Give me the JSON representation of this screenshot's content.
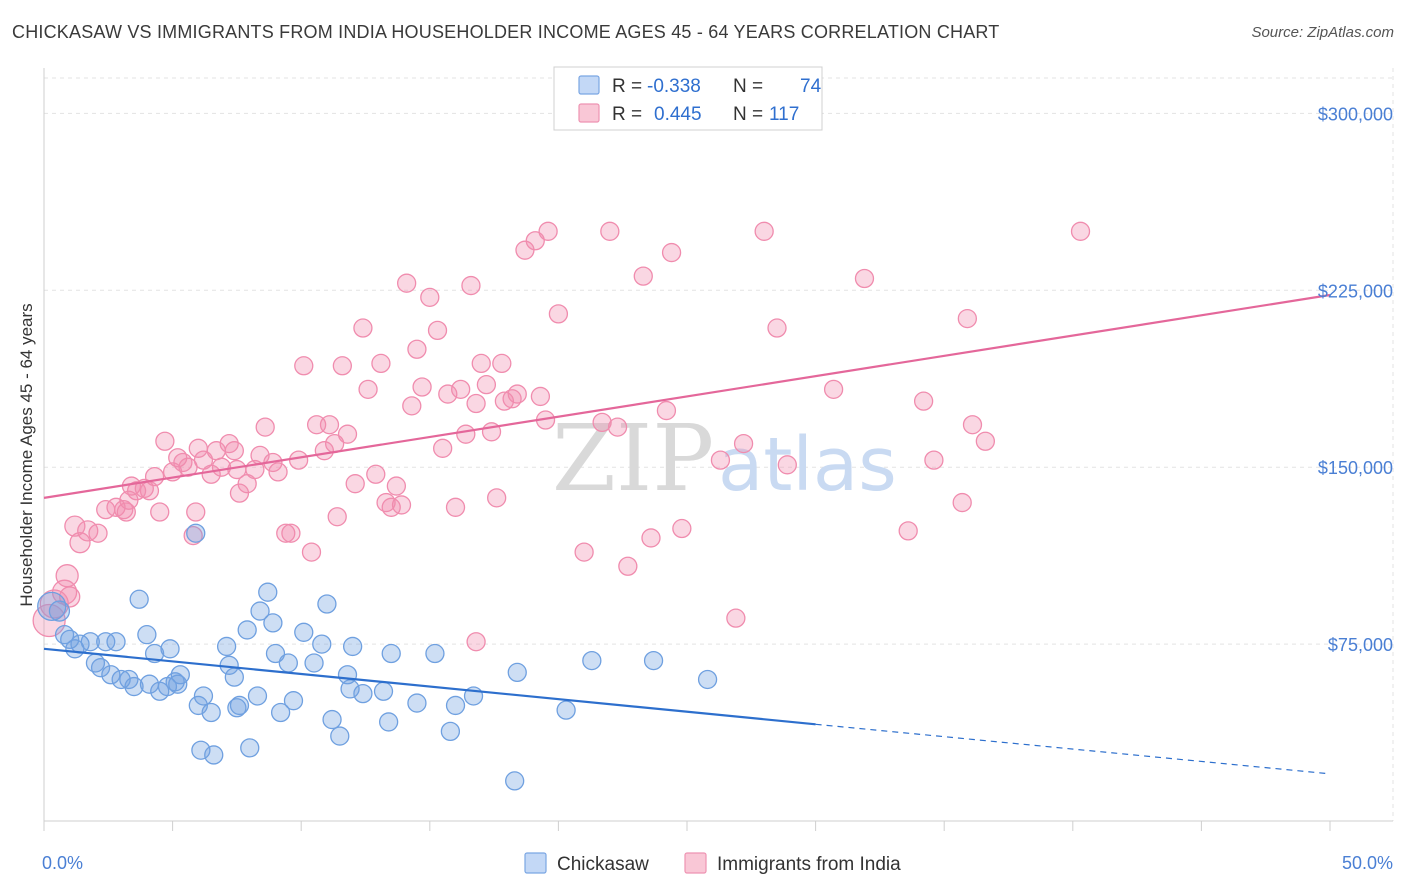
{
  "title": "CHICKASAW VS IMMIGRANTS FROM INDIA HOUSEHOLDER INCOME AGES 45 - 64 YEARS CORRELATION CHART",
  "source": "Source: ZipAtlas.com",
  "watermark": {
    "zip": "ZIP",
    "atlas": "atlas"
  },
  "legend_top": {
    "rows": [
      {
        "r_label": "R =",
        "r_value": "-0.338",
        "n_label": "N =",
        "n_value": "74"
      },
      {
        "r_label": "R =",
        "r_value": "0.445",
        "n_label": "N =",
        "n_value": "117"
      }
    ]
  },
  "chart_data": {
    "type": "scatter",
    "title": "CHICKASAW VS IMMIGRANTS FROM INDIA HOUSEHOLDER INCOME AGES 45 - 64 YEARS CORRELATION CHART",
    "xlabel": "",
    "ylabel": "Householder Income Ages 45 - 64 years",
    "xlim": [
      0,
      50
    ],
    "ylim": [
      0,
      315000
    ],
    "x_tick_labels": [
      "0.0%",
      "50.0%"
    ],
    "y_ticks": [
      75000,
      150000,
      225000,
      300000
    ],
    "y_tick_labels": [
      "$75,000",
      "$150,000",
      "$225,000",
      "$300,000"
    ],
    "colors": {
      "chickasaw": "#6fa0e0",
      "india": "#f08cae",
      "chickasaw_line": "#2d6fcd",
      "india_line": "#e4679a"
    },
    "series": [
      {
        "name": "Chickasaw",
        "r": -0.338,
        "n": 74,
        "trend": {
          "x0": 0,
          "y0": 73000,
          "x1": 30,
          "y1": 41000,
          "x_dash_end": 50,
          "y_dash_end": 20000
        },
        "points": [
          [
            0.3,
            91000,
            14
          ],
          [
            0.6,
            89000,
            10
          ],
          [
            0.8,
            79000,
            9
          ],
          [
            1.0,
            77000,
            9
          ],
          [
            1.2,
            73000,
            9
          ],
          [
            1.4,
            75000,
            9
          ],
          [
            1.8,
            76000,
            9
          ],
          [
            2.0,
            67000,
            9
          ],
          [
            2.2,
            65000,
            9
          ],
          [
            2.4,
            76000,
            9
          ],
          [
            2.8,
            76000,
            9
          ],
          [
            2.6,
            62000,
            9
          ],
          [
            3.0,
            60000,
            9
          ],
          [
            3.3,
            60000,
            9
          ],
          [
            3.5,
            57000,
            9
          ],
          [
            3.7,
            94000,
            9
          ],
          [
            4.0,
            79000,
            9
          ],
          [
            4.1,
            58000,
            9
          ],
          [
            4.3,
            71000,
            9
          ],
          [
            4.5,
            55000,
            9
          ],
          [
            4.8,
            57000,
            9
          ],
          [
            4.9,
            73000,
            9
          ],
          [
            5.1,
            59000,
            9
          ],
          [
            5.3,
            62000,
            9
          ],
          [
            5.2,
            58000,
            9
          ],
          [
            5.9,
            122000,
            9
          ],
          [
            6.0,
            49000,
            9
          ],
          [
            6.2,
            53000,
            9
          ],
          [
            6.5,
            46000,
            9
          ],
          [
            6.1,
            30000,
            9
          ],
          [
            6.6,
            28000,
            9
          ],
          [
            7.1,
            74000,
            9
          ],
          [
            7.2,
            66000,
            9
          ],
          [
            7.4,
            61000,
            9
          ],
          [
            7.5,
            48000,
            9
          ],
          [
            7.6,
            49000,
            9
          ],
          [
            7.9,
            81000,
            9
          ],
          [
            8.0,
            31000,
            9
          ],
          [
            8.3,
            53000,
            9
          ],
          [
            8.4,
            89000,
            9
          ],
          [
            8.7,
            97000,
            9
          ],
          [
            8.9,
            84000,
            9
          ],
          [
            9.0,
            71000,
            9
          ],
          [
            9.2,
            46000,
            9
          ],
          [
            9.5,
            67000,
            9
          ],
          [
            9.7,
            51000,
            9
          ],
          [
            10.1,
            80000,
            9
          ],
          [
            10.5,
            67000,
            9
          ],
          [
            10.8,
            75000,
            9
          ],
          [
            11.0,
            92000,
            9
          ],
          [
            11.2,
            43000,
            9
          ],
          [
            11.5,
            36000,
            9
          ],
          [
            11.8,
            62000,
            9
          ],
          [
            11.9,
            56000,
            9
          ],
          [
            12.0,
            74000,
            9
          ],
          [
            12.4,
            54000,
            9
          ],
          [
            13.2,
            55000,
            9
          ],
          [
            13.4,
            42000,
            9
          ],
          [
            13.5,
            71000,
            9
          ],
          [
            14.5,
            50000,
            9
          ],
          [
            15.2,
            71000,
            9
          ],
          [
            15.8,
            38000,
            9
          ],
          [
            16.0,
            49000,
            9
          ],
          [
            16.7,
            53000,
            9
          ],
          [
            18.3,
            17000,
            9
          ],
          [
            18.4,
            63000,
            9
          ],
          [
            20.3,
            47000,
            9
          ],
          [
            21.3,
            68000,
            9
          ],
          [
            23.7,
            68000,
            9
          ],
          [
            25.8,
            60000,
            9
          ]
        ]
      },
      {
        "name": "Immigrants from India",
        "r": 0.445,
        "n": 117,
        "trend": {
          "x0": 0,
          "y0": 137000,
          "x1": 50,
          "y1": 223000
        },
        "points": [
          [
            0.2,
            85000,
            16
          ],
          [
            0.4,
            92000,
            14
          ],
          [
            0.8,
            97000,
            12
          ],
          [
            0.9,
            104000,
            11
          ],
          [
            1.0,
            95000,
            10
          ],
          [
            1.2,
            125000,
            10
          ],
          [
            1.4,
            118000,
            10
          ],
          [
            1.7,
            123000,
            10
          ],
          [
            2.1,
            122000,
            9
          ],
          [
            2.4,
            132000,
            9
          ],
          [
            2.8,
            133000,
            9
          ],
          [
            3.1,
            132000,
            9
          ],
          [
            3.2,
            131000,
            9
          ],
          [
            3.3,
            136000,
            9
          ],
          [
            3.4,
            142000,
            9
          ],
          [
            3.6,
            140000,
            9
          ],
          [
            3.9,
            141000,
            9
          ],
          [
            4.1,
            140000,
            9
          ],
          [
            4.3,
            146000,
            9
          ],
          [
            4.5,
            131000,
            9
          ],
          [
            4.7,
            161000,
            9
          ],
          [
            5.0,
            148000,
            9
          ],
          [
            5.2,
            154000,
            9
          ],
          [
            5.4,
            152000,
            9
          ],
          [
            5.6,
            150000,
            9
          ],
          [
            5.9,
            131000,
            9
          ],
          [
            6.0,
            158000,
            9
          ],
          [
            6.2,
            153000,
            9
          ],
          [
            6.5,
            147000,
            9
          ],
          [
            6.7,
            157000,
            9
          ],
          [
            6.9,
            150000,
            9
          ],
          [
            7.2,
            160000,
            9
          ],
          [
            7.4,
            157000,
            9
          ],
          [
            7.5,
            149000,
            9
          ],
          [
            7.6,
            139000,
            9
          ],
          [
            7.9,
            143000,
            9
          ],
          [
            8.2,
            149000,
            9
          ],
          [
            8.4,
            155000,
            9
          ],
          [
            8.6,
            167000,
            9
          ],
          [
            8.9,
            152000,
            9
          ],
          [
            9.1,
            148000,
            9
          ],
          [
            9.4,
            122000,
            9
          ],
          [
            9.6,
            122000,
            9
          ],
          [
            9.9,
            153000,
            9
          ],
          [
            10.1,
            193000,
            9
          ],
          [
            10.4,
            114000,
            9
          ],
          [
            10.6,
            168000,
            9
          ],
          [
            10.9,
            157000,
            9
          ],
          [
            11.1,
            168000,
            9
          ],
          [
            11.3,
            160000,
            9
          ],
          [
            11.4,
            129000,
            9
          ],
          [
            11.6,
            193000,
            9
          ],
          [
            11.8,
            164000,
            9
          ],
          [
            12.1,
            143000,
            9
          ],
          [
            12.4,
            209000,
            9
          ],
          [
            12.6,
            183000,
            9
          ],
          [
            12.9,
            147000,
            9
          ],
          [
            13.1,
            194000,
            9
          ],
          [
            13.3,
            135000,
            9
          ],
          [
            13.5,
            133000,
            9
          ],
          [
            13.7,
            142000,
            9
          ],
          [
            13.9,
            134000,
            9
          ],
          [
            14.1,
            228000,
            9
          ],
          [
            14.3,
            176000,
            9
          ],
          [
            14.5,
            200000,
            9
          ],
          [
            14.7,
            184000,
            9
          ],
          [
            15.0,
            222000,
            9
          ],
          [
            15.3,
            208000,
            9
          ],
          [
            15.5,
            158000,
            9
          ],
          [
            15.7,
            181000,
            9
          ],
          [
            16.0,
            133000,
            9
          ],
          [
            16.2,
            183000,
            9
          ],
          [
            16.4,
            164000,
            9
          ],
          [
            16.6,
            227000,
            9
          ],
          [
            16.8,
            177000,
            9
          ],
          [
            17.0,
            194000,
            9
          ],
          [
            17.2,
            185000,
            9
          ],
          [
            17.4,
            165000,
            9
          ],
          [
            17.6,
            137000,
            9
          ],
          [
            17.8,
            194000,
            9
          ],
          [
            17.9,
            178000,
            9
          ],
          [
            18.2,
            179000,
            9
          ],
          [
            18.4,
            181000,
            9
          ],
          [
            18.7,
            242000,
            9
          ],
          [
            19.1,
            246000,
            9
          ],
          [
            19.3,
            180000,
            9
          ],
          [
            19.5,
            170000,
            9
          ],
          [
            19.6,
            250000,
            9
          ],
          [
            20.0,
            215000,
            9
          ],
          [
            21.0,
            114000,
            9
          ],
          [
            21.7,
            169000,
            9
          ],
          [
            22.0,
            250000,
            9
          ],
          [
            22.3,
            167000,
            9
          ],
          [
            22.7,
            108000,
            9
          ],
          [
            23.3,
            231000,
            9
          ],
          [
            23.6,
            120000,
            9
          ],
          [
            24.2,
            174000,
            9
          ],
          [
            24.4,
            241000,
            9
          ],
          [
            24.8,
            124000,
            9
          ],
          [
            26.3,
            153000,
            9
          ],
          [
            26.9,
            86000,
            9
          ],
          [
            27.2,
            160000,
            9
          ],
          [
            28.0,
            250000,
            9
          ],
          [
            28.5,
            209000,
            9
          ],
          [
            28.9,
            151000,
            9
          ],
          [
            30.7,
            183000,
            9
          ],
          [
            31.9,
            230000,
            9
          ],
          [
            33.6,
            123000,
            9
          ],
          [
            34.2,
            178000,
            9
          ],
          [
            34.6,
            153000,
            9
          ],
          [
            35.9,
            213000,
            9
          ],
          [
            35.7,
            135000,
            9
          ],
          [
            36.1,
            168000,
            9
          ],
          [
            36.6,
            161000,
            9
          ],
          [
            40.3,
            250000,
            9
          ],
          [
            16.8,
            76000,
            9
          ],
          [
            5.8,
            121000,
            9
          ]
        ]
      }
    ]
  },
  "legend_bottom": [
    {
      "label": "Chickasaw"
    },
    {
      "label": "Immigrants from India"
    }
  ]
}
